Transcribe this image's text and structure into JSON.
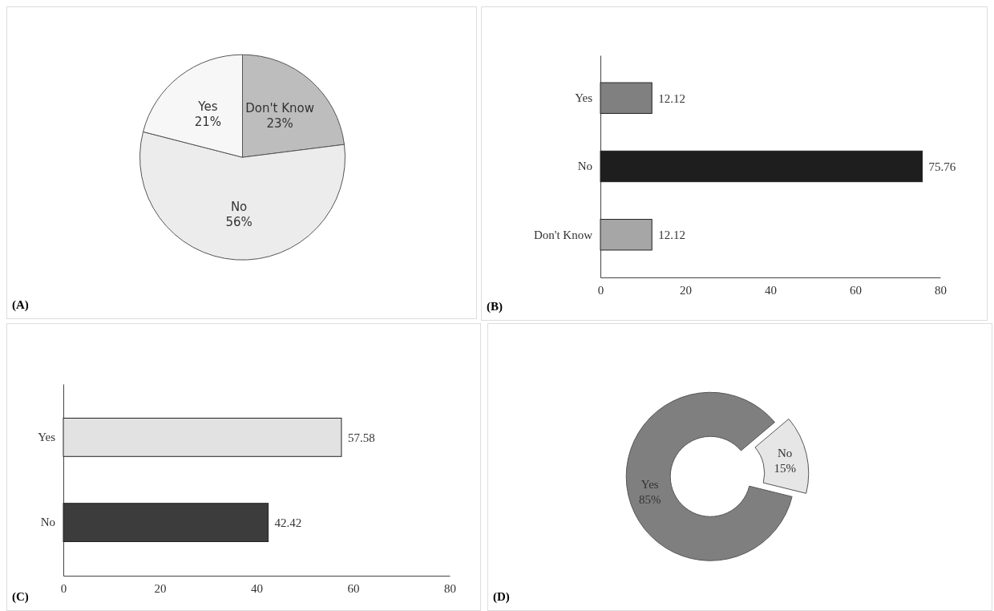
{
  "chart_data": [
    {
      "type": "pie",
      "categories": [
        "Don't Know",
        "No",
        "Yes"
      ],
      "values": [
        23,
        56,
        21
      ],
      "value_labels": [
        "23%",
        "56%",
        "21%"
      ],
      "colors": [
        "#bdbdbd",
        "#ececec",
        "#f7f7f7"
      ],
      "annotations": [
        "(A)"
      ]
    },
    {
      "type": "bar",
      "orientation": "horizontal",
      "categories": [
        "Yes",
        "No",
        "Don't Know"
      ],
      "values": [
        12.12,
        75.76,
        12.12
      ],
      "colors": [
        "#808080",
        "#1e1e1e",
        "#a6a6a6"
      ],
      "xlim": [
        0,
        80
      ],
      "xticks": [
        0,
        20,
        40,
        60,
        80
      ],
      "data_labels": true,
      "annotations": [
        "(B)"
      ]
    },
    {
      "type": "bar",
      "orientation": "horizontal",
      "categories": [
        "Yes",
        "No"
      ],
      "values": [
        57.58,
        42.42
      ],
      "colors": [
        "#e2e2e2",
        "#3c3c3c"
      ],
      "xlim": [
        0,
        80
      ],
      "xticks": [
        0,
        20,
        40,
        60,
        80
      ],
      "data_labels": true,
      "annotations": [
        "(C)"
      ]
    },
    {
      "type": "donut",
      "categories": [
        "No",
        "Yes"
      ],
      "values": [
        15,
        85
      ],
      "value_labels": [
        "15%",
        "85%"
      ],
      "colors": [
        "#e6e6e6",
        "#7f7f7f"
      ],
      "annotations": [
        "(D)"
      ]
    }
  ]
}
